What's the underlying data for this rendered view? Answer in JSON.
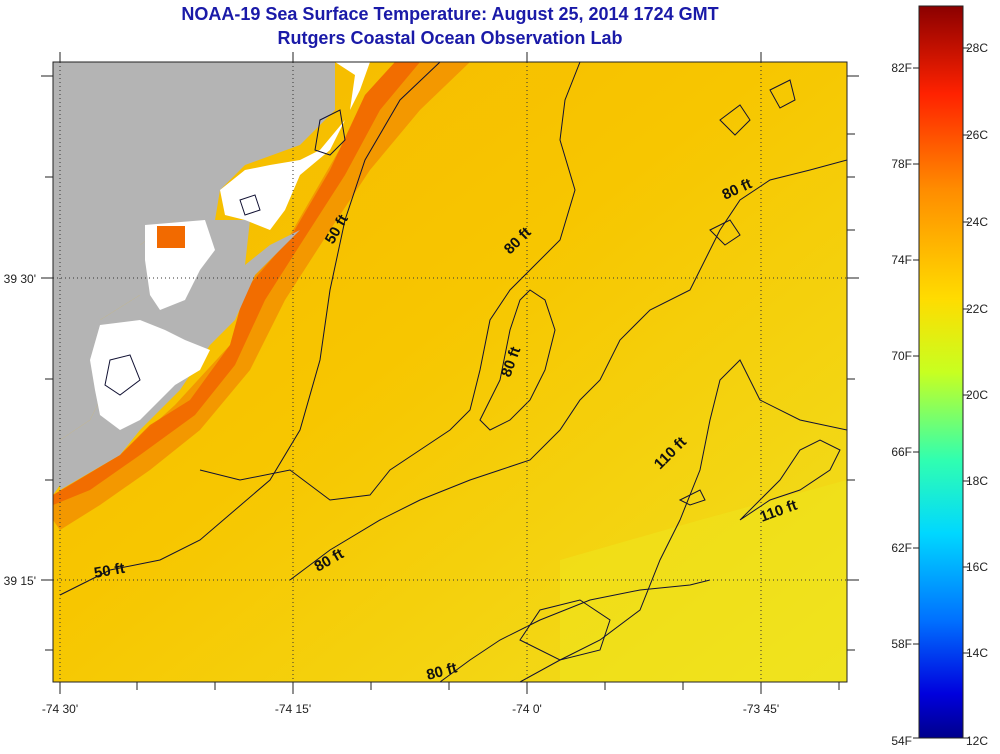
{
  "header": {
    "title": "NOAA-19 Sea Surface Temperature:  August 25, 2014 1724 GMT",
    "subtitle": "Rutgers Coastal Ocean Observation Lab"
  },
  "axes": {
    "x_ticks": [
      "-74 30'",
      "-74 15'",
      "-74 0'",
      "-73 45'"
    ],
    "y_ticks": [
      "39 30'",
      "39 15'"
    ]
  },
  "contours": {
    "labels": [
      "50 ft",
      "50 ft",
      "80 ft",
      "80 ft",
      "80 ft",
      "80 ft",
      "80 ft",
      "110 ft",
      "110 ft"
    ]
  },
  "colorbar": {
    "fahrenheit": [
      "82F",
      "78F",
      "74F",
      "70F",
      "66F",
      "62F",
      "58F",
      "54F"
    ],
    "celsius": [
      "28C",
      "26C",
      "24C",
      "22C",
      "20C",
      "18C",
      "16C",
      "14C",
      "12C"
    ],
    "colors": [
      "#8b0000",
      "#ff2a00",
      "#ff8c00",
      "#ffd700",
      "#e8ff00",
      "#7dff7a",
      "#00e5ff",
      "#0080ff",
      "#0000cc",
      "#00008b"
    ]
  },
  "colors": {
    "title": "#1a1aa8",
    "land": "#b4b4b4",
    "sea_main": "#f7c400",
    "sea_warm": "#f28a00",
    "sea_hot": "#f26a00",
    "sea_cool": "#ecec20"
  }
}
